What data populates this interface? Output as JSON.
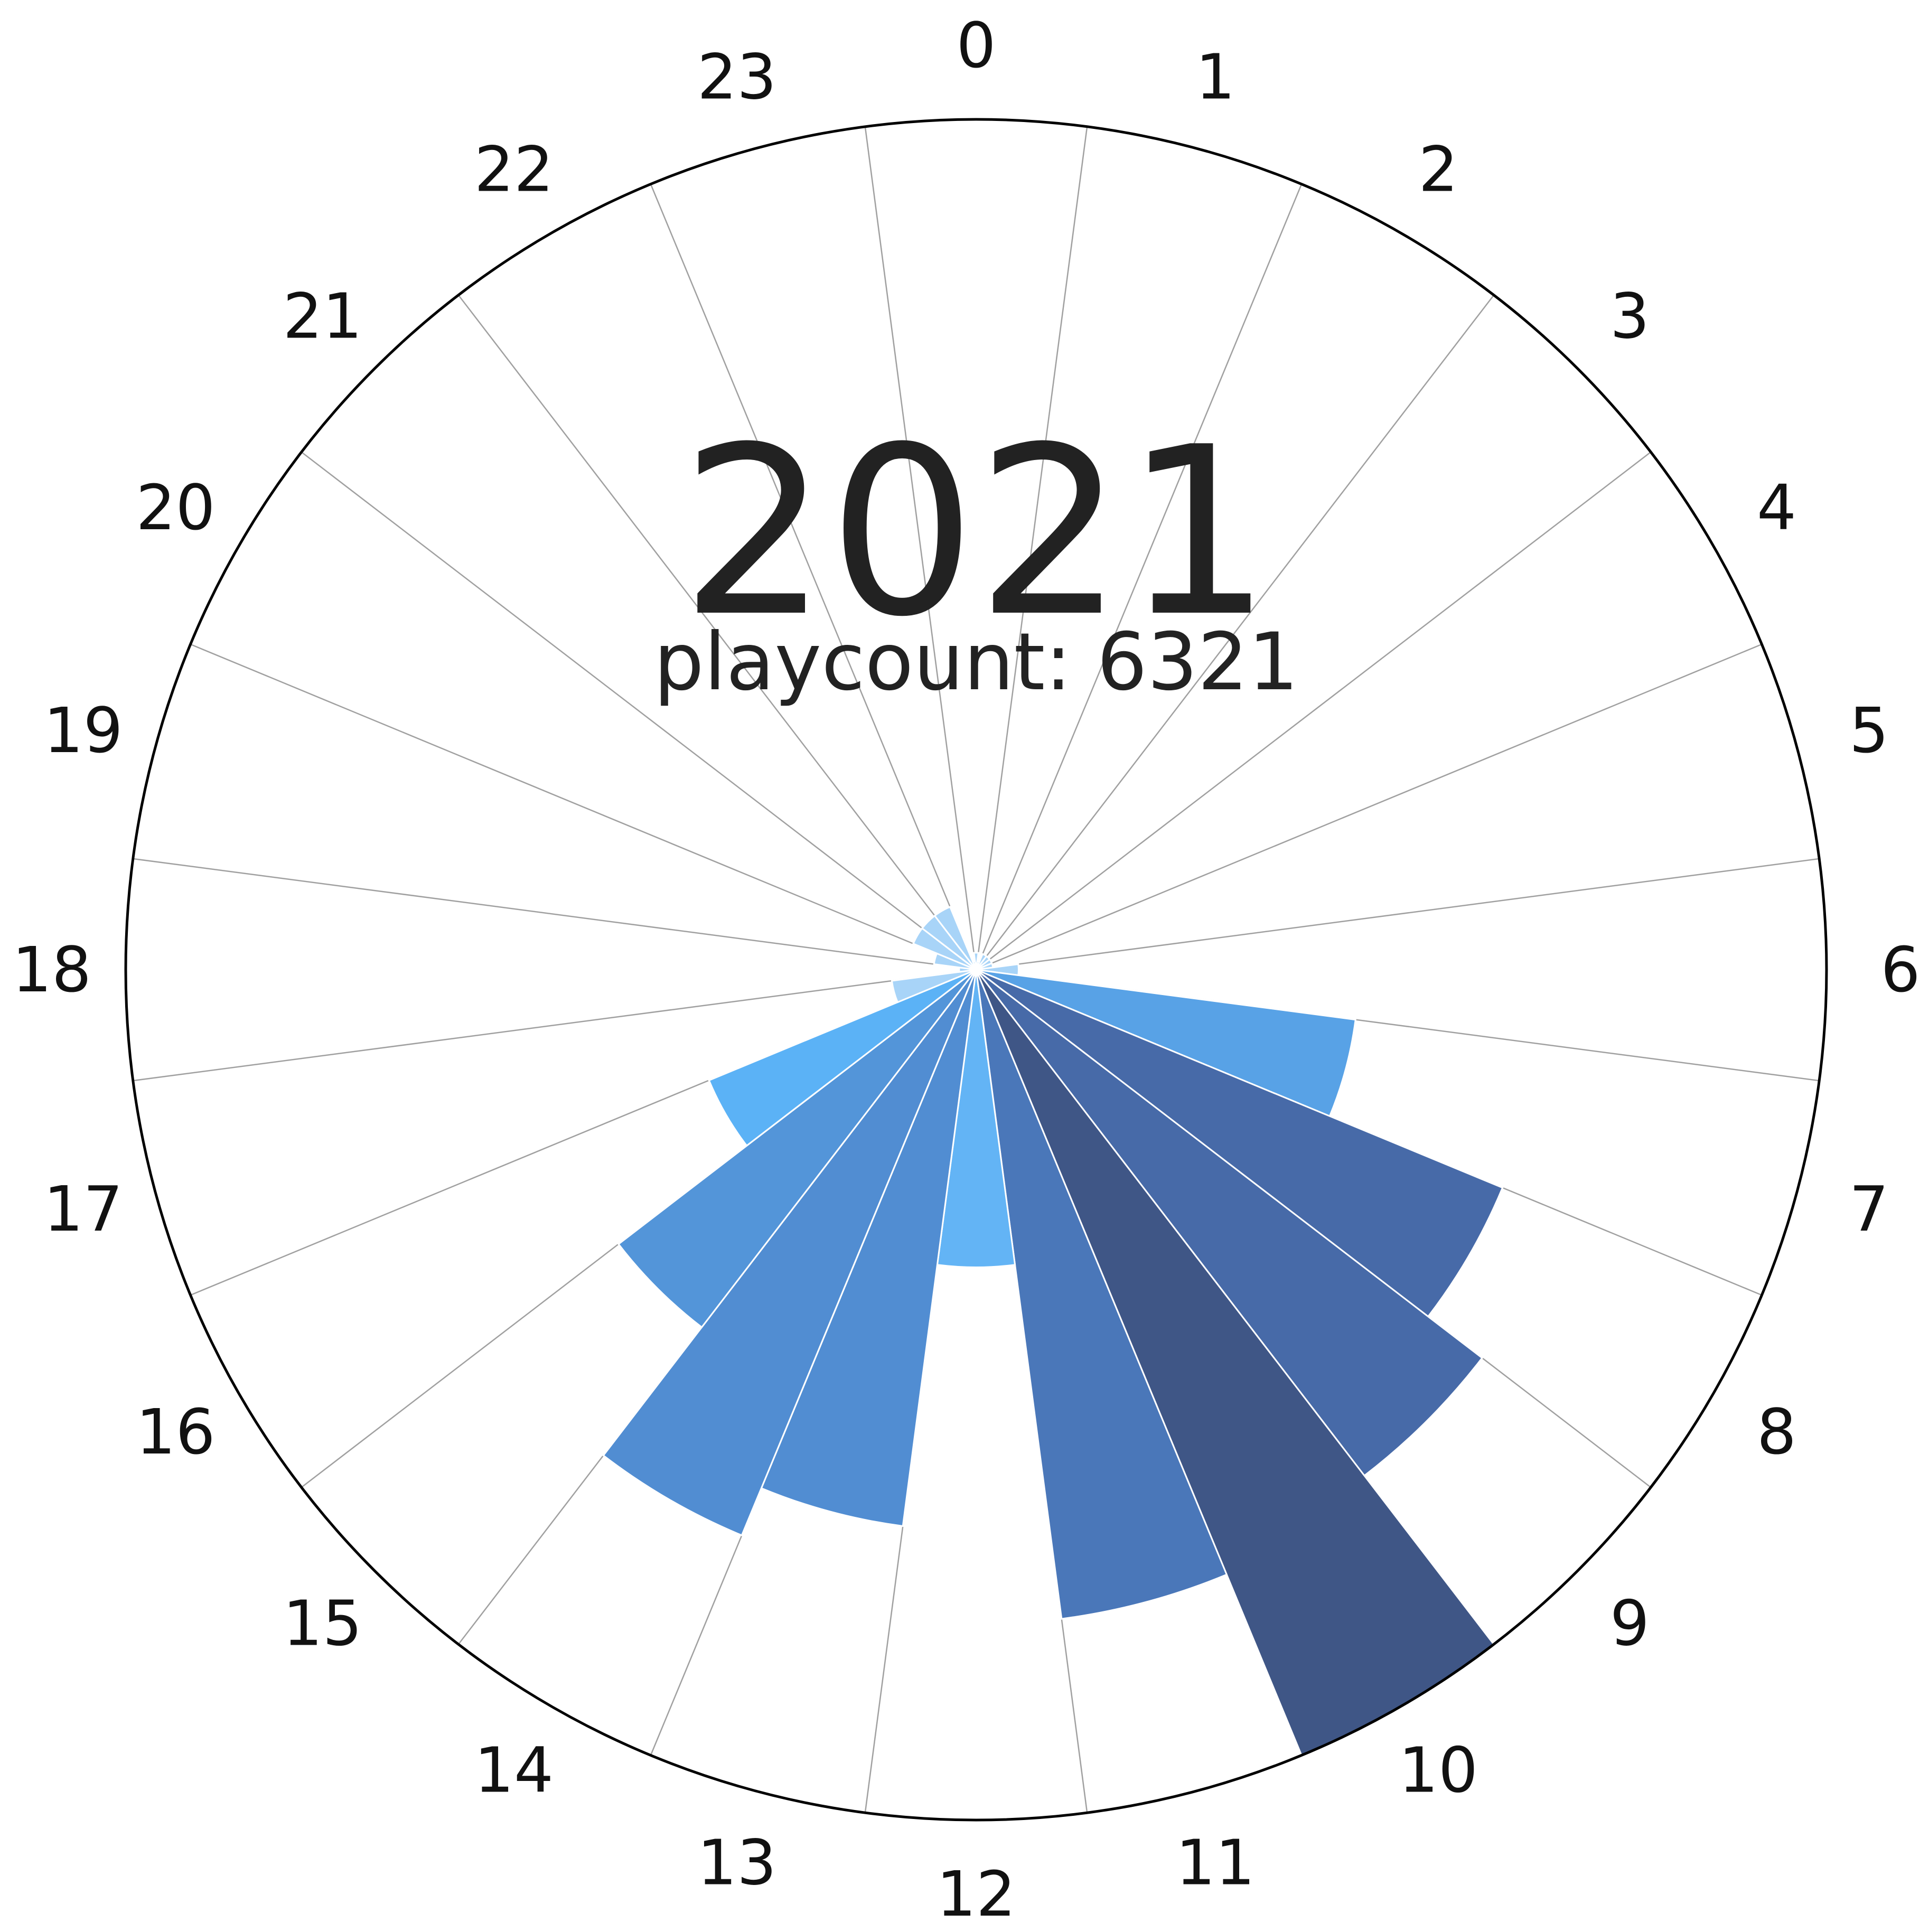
{
  "chart_data": {
    "type": "bar",
    "subtype": "polar",
    "title": "2021",
    "subtitle": "playcount: 6321",
    "categories": [
      "0",
      "1",
      "2",
      "3",
      "4",
      "5",
      "6",
      "7",
      "8",
      "9",
      "10",
      "11",
      "12",
      "13",
      "14",
      "15",
      "16",
      "17",
      "18",
      "19",
      "20",
      "21",
      "22",
      "23"
    ],
    "values": [
      2,
      1,
      2,
      2,
      2,
      2,
      5,
      45,
      67,
      75,
      100,
      77,
      35,
      66,
      72,
      53,
      34,
      10,
      2,
      5,
      8,
      8,
      8,
      1
    ],
    "colors": [
      "#a8d4f8",
      "#a8d4f8",
      "#a8d4f8",
      "#a8d4f8",
      "#a8d4f8",
      "#a8d4f8",
      "#a8d4f8",
      "#58a2e6",
      "#476aa8",
      "#476aa8",
      "#3f5686",
      "#4a77b9",
      "#63b4f5",
      "#518dd2",
      "#518dd2",
      "#5395d9",
      "#5bb2f6",
      "#a8d4f8",
      "#a8d4f8",
      "#a8d4f8",
      "#a8d4f8",
      "#a8d4f8",
      "#a8d4f8",
      "#a8d4f8"
    ],
    "rlim": [
      0,
      100
    ],
    "direction": "clockwise",
    "zero_location": "top",
    "grid": true
  }
}
